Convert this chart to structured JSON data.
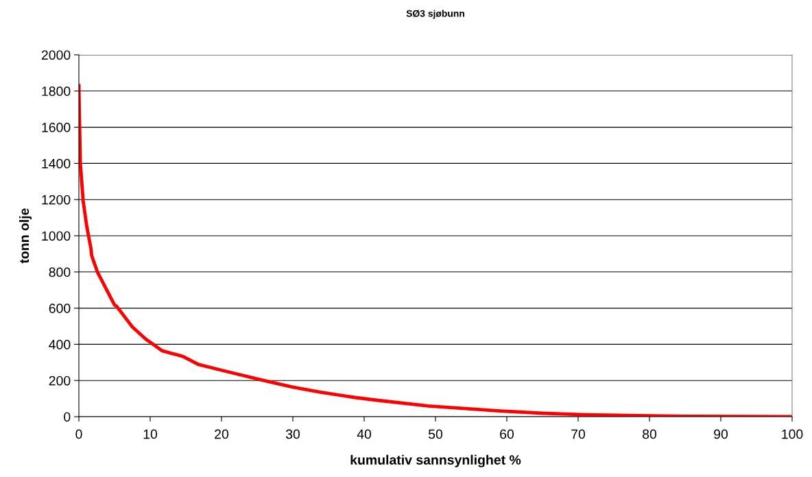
{
  "chart_data": {
    "type": "line",
    "title": "SØ3 sjøbunn",
    "xlabel": "kumulativ sannsynlighet %",
    "ylabel": "tonn olje",
    "series": [
      {
        "color": "#ff0000",
        "x": [
          0,
          0.2,
          0.6,
          1.1,
          1.7,
          1.8,
          2.6,
          3.4,
          5.0,
          5.3,
          7.5,
          9.4,
          11.7,
          14.6,
          16.8,
          20.7,
          25.8,
          30.0,
          33.8,
          38.7,
          41.8,
          49,
          59,
          65,
          71,
          77,
          85,
          100
        ],
        "values": [
          1830,
          1405,
          1193,
          1053,
          928,
          890,
          800,
          739,
          617,
          610,
          496,
          428,
          364,
          333,
          288,
          250,
          201,
          163,
          136,
          106,
          91,
          59,
          32,
          19,
          11,
          7,
          2,
          0
        ]
      }
    ],
    "xlim": [
      0,
      100
    ],
    "xticks": [
      0,
      10,
      20,
      30,
      40,
      50,
      60,
      70,
      80,
      90,
      100
    ],
    "ylim": [
      0,
      2000
    ],
    "yticks": [
      0,
      200,
      400,
      600,
      800,
      1000,
      1200,
      1400,
      1600,
      1800,
      2000
    ],
    "grid": "y",
    "legend": false,
    "marker": "none",
    "line_style": "solid"
  }
}
